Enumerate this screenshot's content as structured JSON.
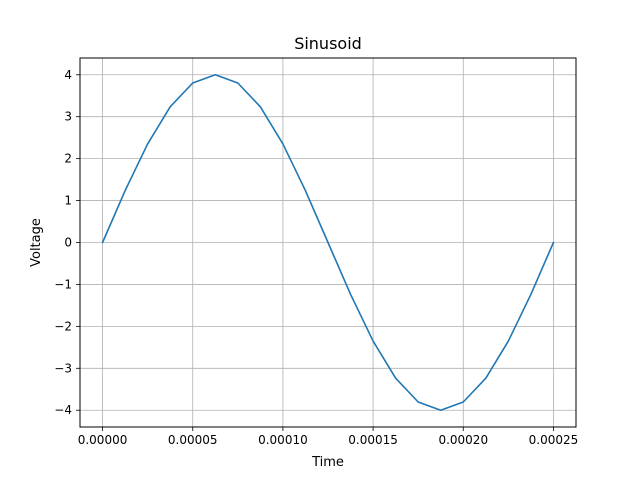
{
  "chart_data": {
    "type": "line",
    "title": "Sinusoid",
    "xlabel": "Time",
    "ylabel": "Voltage",
    "xlim": [
      -1.25e-05,
      0.0002625
    ],
    "ylim": [
      -4.4,
      4.4
    ],
    "grid": true,
    "x_ticks": [
      {
        "value": 0.0,
        "label": "0.00000"
      },
      {
        "value": 5e-05,
        "label": "0.00005"
      },
      {
        "value": 0.0001,
        "label": "0.00010"
      },
      {
        "value": 0.00015,
        "label": "0.00015"
      },
      {
        "value": 0.0002,
        "label": "0.00020"
      },
      {
        "value": 0.00025,
        "label": "0.00025"
      }
    ],
    "y_ticks": [
      {
        "value": 4,
        "label": "4"
      },
      {
        "value": 3,
        "label": "3"
      },
      {
        "value": 2,
        "label": "2"
      },
      {
        "value": 1,
        "label": "1"
      },
      {
        "value": 0,
        "label": "0"
      },
      {
        "value": -1,
        "label": "−1"
      },
      {
        "value": -2,
        "label": "−2"
      },
      {
        "value": -3,
        "label": "−3"
      },
      {
        "value": -4,
        "label": "−4"
      }
    ],
    "series": [
      {
        "color": "#1f77b4",
        "x": [
          0.0,
          1.25e-05,
          2.5e-05,
          3.75e-05,
          5e-05,
          6.25e-05,
          7.5e-05,
          8.75e-05,
          0.0001,
          0.0001125,
          0.000125,
          0.0001375,
          0.00015,
          0.0001625,
          0.000175,
          0.0001875,
          0.0002,
          0.0002125,
          0.000225,
          0.0002375,
          0.00025
        ],
        "y": [
          0.0,
          1.236,
          2.351,
          3.236,
          3.804,
          4.0,
          3.804,
          3.236,
          2.351,
          1.236,
          0.0,
          -1.236,
          -2.351,
          -3.236,
          -3.804,
          -4.0,
          -3.804,
          -3.236,
          -2.351,
          -1.236,
          0.0
        ]
      }
    ]
  }
}
